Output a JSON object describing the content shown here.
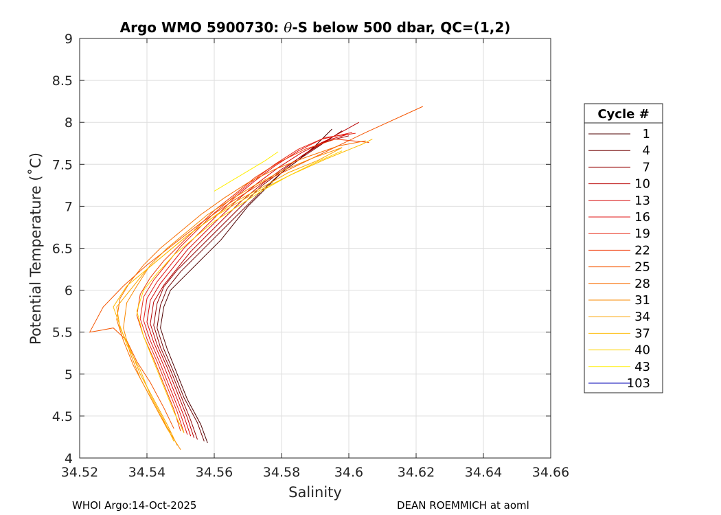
{
  "chart_data": {
    "type": "line",
    "title_prefix": "Argo WMO 5900730: ",
    "title_theta": "θ",
    "title_suffix": "-S below 500 dbar,  QC=(1,2)",
    "xlabel": "Salinity",
    "ylabel": "Potential Temperature (˚C)",
    "xlim": [
      34.52,
      34.66
    ],
    "ylim": [
      4,
      9
    ],
    "grid": true,
    "xticks": [
      34.52,
      34.54,
      34.56,
      34.58,
      34.6,
      34.62,
      34.64,
      34.66
    ],
    "xtick_labels": [
      "34.52",
      "34.54",
      "34.56",
      "34.58",
      "34.6",
      "34.62",
      "34.64",
      "34.66"
    ],
    "yticks": [
      4,
      4.5,
      5,
      5.5,
      6,
      6.5,
      7,
      7.5,
      8,
      8.5,
      9
    ],
    "ytick_labels": [
      "4",
      "4.5",
      "5",
      "5.5",
      "6",
      "6.5",
      "7",
      "7.5",
      "8",
      "8.5",
      "9"
    ],
    "legend": {
      "title": "Cycle #",
      "placement": "right-outside",
      "entries": [
        {
          "label": "1",
          "color": "#4d0000"
        },
        {
          "label": "4",
          "color": "#700000"
        },
        {
          "label": "7",
          "color": "#940000"
        },
        {
          "label": "10",
          "color": "#b80000"
        },
        {
          "label": "13",
          "color": "#d60404"
        },
        {
          "label": "16",
          "color": "#e01414"
        },
        {
          "label": "19",
          "color": "#e82814"
        },
        {
          "label": "22",
          "color": "#f03c0a"
        },
        {
          "label": "25",
          "color": "#f55500"
        },
        {
          "label": "28",
          "color": "#f86e00"
        },
        {
          "label": "31",
          "color": "#fa8800"
        },
        {
          "label": "34",
          "color": "#fca200"
        },
        {
          "label": "37",
          "color": "#feba00"
        },
        {
          "label": "40",
          "color": "#ffd400"
        },
        {
          "label": "43",
          "color": "#ffee00"
        },
        {
          "label": "103",
          "color": "#0000b4"
        }
      ]
    },
    "series": [
      {
        "name": "1",
        "color": "#4d0000",
        "x": [
          34.558,
          34.556,
          34.552,
          34.549,
          34.546,
          34.544,
          34.545,
          34.547,
          34.552,
          34.557,
          34.562,
          34.566,
          34.57,
          34.575,
          34.58,
          34.585,
          34.59,
          34.595
        ],
        "y": [
          4.18,
          4.4,
          4.7,
          5.0,
          5.3,
          5.55,
          5.8,
          6.0,
          6.2,
          6.4,
          6.6,
          6.8,
          7.0,
          7.2,
          7.4,
          7.55,
          7.72,
          7.92
        ]
      },
      {
        "name": "4",
        "color": "#700000",
        "x": [
          34.557,
          34.555,
          34.551,
          34.548,
          34.545,
          34.543,
          34.544,
          34.546,
          34.55,
          34.555,
          34.56,
          34.565,
          34.57,
          34.575,
          34.58,
          34.586,
          34.592,
          34.598
        ],
        "y": [
          4.2,
          4.42,
          4.72,
          5.02,
          5.3,
          5.55,
          5.82,
          6.02,
          6.22,
          6.42,
          6.62,
          6.82,
          7.02,
          7.22,
          7.4,
          7.58,
          7.74,
          7.9
        ]
      },
      {
        "name": "7",
        "color": "#940000",
        "x": [
          34.555,
          34.553,
          34.55,
          34.547,
          34.544,
          34.542,
          34.543,
          34.545,
          34.549,
          34.554,
          34.559,
          34.564,
          34.569,
          34.574,
          34.58,
          34.586,
          34.592,
          34.6
        ],
        "y": [
          4.22,
          4.45,
          4.75,
          5.05,
          5.32,
          5.58,
          5.84,
          6.04,
          6.24,
          6.44,
          6.64,
          6.84,
          7.04,
          7.24,
          7.42,
          7.6,
          7.76,
          7.84
        ]
      },
      {
        "name": "10",
        "color": "#b80000",
        "x": [
          34.554,
          34.552,
          34.549,
          34.546,
          34.543,
          34.541,
          34.542,
          34.545,
          34.549,
          34.553,
          34.558,
          34.563,
          34.568,
          34.574,
          34.58,
          34.587,
          34.594,
          34.603
        ],
        "y": [
          4.24,
          4.48,
          4.78,
          5.08,
          5.35,
          5.6,
          5.86,
          6.06,
          6.26,
          6.46,
          6.66,
          6.86,
          7.06,
          7.26,
          7.44,
          7.62,
          7.8,
          8.0
        ]
      },
      {
        "name": "13",
        "color": "#d60404",
        "x": [
          34.553,
          34.551,
          34.548,
          34.545,
          34.542,
          34.54,
          34.541,
          34.544,
          34.548,
          34.552,
          34.557,
          34.562,
          34.567,
          34.573,
          34.579,
          34.586,
          34.593,
          34.6
        ],
        "y": [
          4.26,
          4.5,
          4.8,
          5.1,
          5.38,
          5.62,
          5.88,
          6.08,
          6.28,
          6.48,
          6.68,
          6.88,
          7.08,
          7.28,
          7.46,
          7.64,
          7.78,
          7.86
        ]
      },
      {
        "name": "16",
        "color": "#e01414",
        "x": [
          34.552,
          34.55,
          34.547,
          34.544,
          34.541,
          34.539,
          34.54,
          34.543,
          34.547,
          34.551,
          34.556,
          34.561,
          34.566,
          34.572,
          34.578,
          34.585,
          34.592,
          34.601
        ],
        "y": [
          4.28,
          4.52,
          4.82,
          5.12,
          5.4,
          5.64,
          5.9,
          6.1,
          6.3,
          6.5,
          6.7,
          6.9,
          7.1,
          7.3,
          7.48,
          7.66,
          7.8,
          7.88
        ]
      },
      {
        "name": "19",
        "color": "#e82814",
        "x": [
          34.551,
          34.549,
          34.546,
          34.543,
          34.54,
          34.538,
          34.539,
          34.542,
          34.546,
          34.55,
          34.555,
          34.56,
          34.566,
          34.572,
          34.578,
          34.585,
          34.593,
          34.602
        ],
        "y": [
          4.3,
          4.55,
          4.85,
          5.15,
          5.42,
          5.66,
          5.92,
          6.12,
          6.32,
          6.52,
          6.72,
          6.92,
          7.12,
          7.32,
          7.5,
          7.68,
          7.82,
          7.87
        ]
      },
      {
        "name": "22",
        "color": "#f03c0a",
        "x": [
          34.55,
          34.548,
          34.545,
          34.542,
          34.539,
          34.537,
          34.538,
          34.541,
          34.545,
          34.55,
          34.555,
          34.56,
          34.566,
          34.572,
          34.579,
          34.587,
          34.596,
          34.606
        ],
        "y": [
          4.32,
          4.58,
          4.88,
          5.18,
          5.45,
          5.7,
          5.95,
          6.15,
          6.35,
          6.55,
          6.75,
          6.95,
          7.14,
          7.34,
          7.52,
          7.68,
          7.8,
          7.76
        ]
      },
      {
        "name": "25",
        "color": "#f55500",
        "x": [
          34.548,
          34.545,
          34.541,
          34.537,
          34.534,
          34.53,
          34.526,
          34.523,
          34.527,
          34.533,
          34.54,
          34.548,
          34.556,
          34.565,
          34.575,
          34.588,
          34.605,
          34.622
        ],
        "y": [
          4.35,
          4.6,
          4.9,
          5.15,
          5.4,
          5.55,
          5.52,
          5.5,
          5.8,
          6.05,
          6.3,
          6.55,
          6.8,
          7.05,
          7.3,
          7.55,
          7.88,
          8.19
        ]
      },
      {
        "name": "28",
        "color": "#f86e00",
        "x": [
          34.547,
          34.544,
          34.54,
          34.536,
          34.533,
          34.531,
          34.532,
          34.535,
          34.539,
          34.544,
          34.55,
          34.556,
          34.563,
          34.57,
          34.578,
          34.587,
          34.597,
          34.605
        ],
        "y": [
          4.3,
          4.5,
          4.8,
          5.1,
          5.4,
          5.65,
          5.9,
          6.1,
          6.3,
          6.5,
          6.7,
          6.9,
          7.1,
          7.28,
          7.44,
          7.58,
          7.72,
          7.78
        ]
      },
      {
        "name": "31",
        "color": "#fa8800",
        "x": [
          34.55,
          34.546,
          34.542,
          34.538,
          34.535,
          34.533,
          34.534,
          34.537,
          34.541,
          34.546,
          34.552,
          34.558,
          34.565,
          34.572,
          34.58,
          34.589,
          34.598
        ],
        "y": [
          4.1,
          4.35,
          4.65,
          4.95,
          5.25,
          5.55,
          5.85,
          6.05,
          6.3,
          6.5,
          6.7,
          6.9,
          7.08,
          7.25,
          7.42,
          7.57,
          7.7
        ]
      },
      {
        "name": "34",
        "color": "#fca200",
        "x": [
          34.549,
          34.546,
          34.542,
          34.538,
          34.535,
          34.532,
          34.531,
          34.535,
          34.54,
          34.546,
          34.552,
          34.559,
          34.566,
          34.574,
          34.582,
          34.591,
          34.598
        ],
        "y": [
          4.15,
          4.4,
          4.7,
          5.0,
          5.3,
          5.55,
          5.8,
          6.0,
          6.25,
          6.45,
          6.65,
          6.85,
          7.05,
          7.22,
          7.4,
          7.55,
          7.7
        ]
      },
      {
        "name": "37",
        "color": "#feba00",
        "x": [
          34.548,
          34.545,
          34.541,
          34.538,
          34.534,
          34.53,
          34.534,
          34.54,
          34.546,
          34.552,
          34.559,
          34.566,
          34.574,
          34.583,
          34.593,
          34.604,
          34.607
        ],
        "y": [
          4.2,
          4.45,
          4.75,
          5.05,
          5.35,
          5.8,
          6.05,
          6.25,
          6.45,
          6.65,
          6.85,
          7.02,
          7.2,
          7.38,
          7.56,
          7.74,
          7.8
        ]
      },
      {
        "name": "40",
        "color": "#ffd400",
        "x": [
          34.551,
          34.548,
          34.545,
          34.542,
          34.539,
          34.537,
          34.539,
          34.543,
          34.548,
          34.554,
          34.56,
          34.567,
          34.574,
          34.582,
          34.59,
          34.598
        ],
        "y": [
          4.3,
          4.55,
          4.85,
          5.15,
          5.45,
          5.75,
          6.0,
          6.2,
          6.42,
          6.62,
          6.82,
          7.0,
          7.18,
          7.36,
          7.52,
          7.66
        ]
      },
      {
        "name": "43",
        "color": "#ffee00",
        "x": [
          34.56,
          34.565,
          34.57,
          34.575,
          34.579
        ],
        "y": [
          7.18,
          7.3,
          7.42,
          7.54,
          7.65
        ]
      },
      {
        "name": "103",
        "color": "#0000b4",
        "x": [],
        "y": []
      }
    ]
  },
  "footer": {
    "left": "WHOI Argo:14-Oct-2025",
    "right": "DEAN ROEMMICH at aoml"
  }
}
